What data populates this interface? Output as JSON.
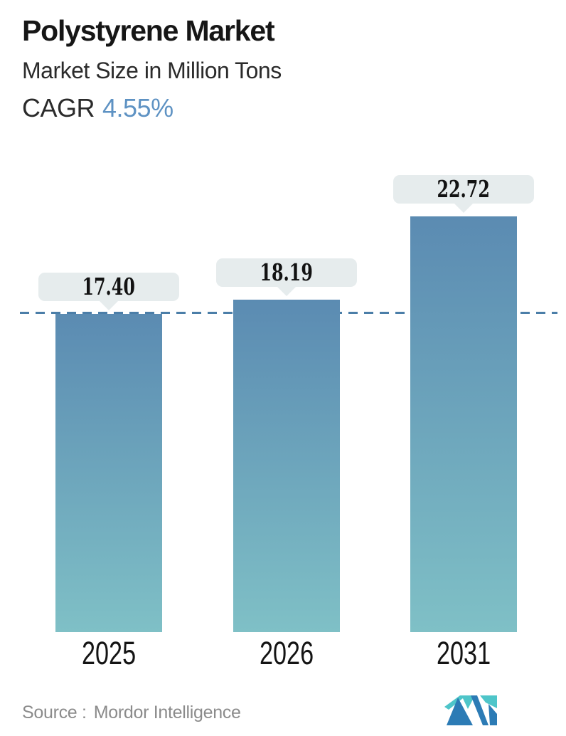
{
  "header": {
    "title": "Polystyrene Market",
    "subtitle": "Market Size in Million Tons",
    "cagr_label": "CAGR",
    "cagr_value": "4.55%"
  },
  "chart_data": {
    "type": "bar",
    "categories": [
      "2025",
      "2026",
      "2031"
    ],
    "values": [
      17.4,
      18.19,
      22.72
    ],
    "value_labels": [
      "17.40",
      "18.19",
      "22.72"
    ],
    "title": "Polystyrene Market",
    "subtitle": "Market Size in Million Tons",
    "unit": "Million Tons",
    "cagr": "4.55%",
    "xlabel": "",
    "ylabel": "Market Size in Million Tons",
    "ylim": [
      0,
      24
    ],
    "grid": false,
    "legend": "none",
    "reference_line": {
      "value": 17.4,
      "style": "dashed"
    },
    "bar_gradient_top": "#5b8bb2",
    "bar_gradient_bottom": "#7fc0c6"
  },
  "footer": {
    "source_label": "Source :",
    "source_value": "Mordor Intelligence",
    "logo_name": "mordor-intelligence-logo"
  },
  "colors": {
    "bar_top": "#5b8bb2",
    "bar_bottom": "#7fc0c6",
    "dash_line": "#4b7ea8",
    "bubble_bg": "#e6eced",
    "cagr_value": "#5e92c3",
    "source_text": "#8b8b8b",
    "logo_teal": "#4ec5c9",
    "logo_blue": "#2c7bb5"
  }
}
